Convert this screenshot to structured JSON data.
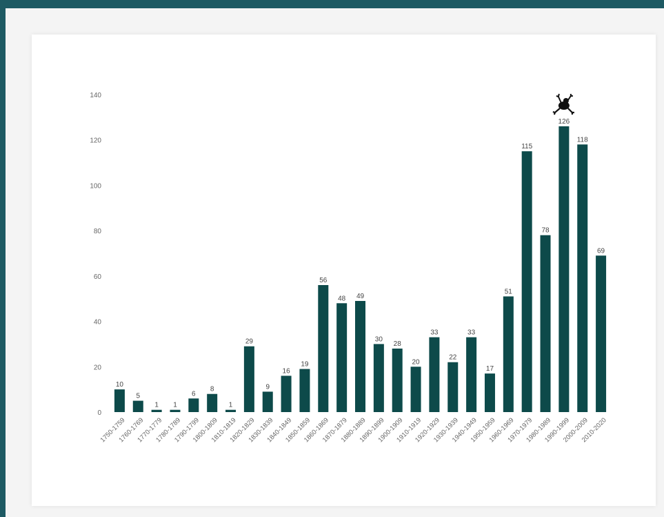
{
  "chart_data": {
    "type": "bar",
    "title": "",
    "xlabel": "",
    "ylabel": "",
    "ylim": [
      0,
      140
    ],
    "yticks": [
      0,
      20,
      40,
      60,
      80,
      100,
      120,
      140
    ],
    "grid": false,
    "bar_color": "#0d4a4a",
    "categories": [
      "1750-1759",
      "1760-1769",
      "1770-1779",
      "1780-1789",
      "1790-1799",
      "1800-1809",
      "1810-1819",
      "1820-1829",
      "1830-1839",
      "1840-1849",
      "1850-1859",
      "1860-1869",
      "1870-1879",
      "1880-1889",
      "1890-1899",
      "1900-1909",
      "1910-1919",
      "1920-1929",
      "1930-1939",
      "1940-1949",
      "1950-1959",
      "1960-1969",
      "1970-1979",
      "1980-1989",
      "1990-1999",
      "2000-2009",
      "2010-2020"
    ],
    "values": [
      10,
      5,
      1,
      1,
      6,
      8,
      1,
      29,
      9,
      16,
      19,
      56,
      48,
      49,
      30,
      28,
      20,
      33,
      22,
      33,
      17,
      51,
      115,
      78,
      126,
      118,
      69
    ],
    "data_labels": [
      "10",
      "5",
      "1",
      "1",
      "6",
      "8",
      "1",
      "29",
      "9",
      "16",
      "19",
      "56",
      "48",
      "49",
      "30",
      "28",
      "20",
      "33",
      "22",
      "33",
      "17",
      "51",
      "115",
      "78",
      "126",
      "118",
      "69"
    ],
    "annotations": [
      {
        "category": "1990-1999",
        "icon": "frog-icon"
      }
    ]
  }
}
